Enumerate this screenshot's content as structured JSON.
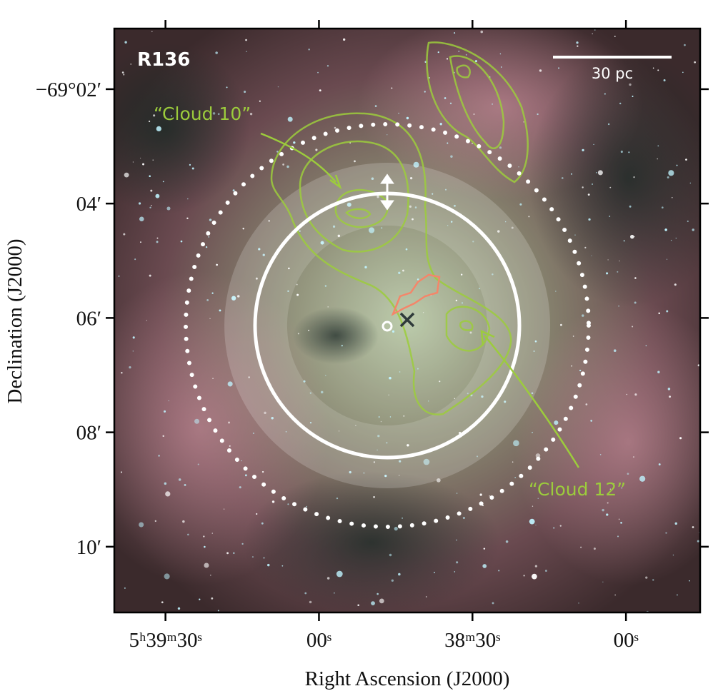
{
  "chart_data": {
    "type": "image",
    "xlabel": "Right Ascension (J2000)",
    "ylabel": "Declination (J2000)",
    "xlim": [
      100,
      -14.5
    ],
    "ylim": [
      11.15,
      0.94
    ],
    "xticks": [
      {
        "value": 90,
        "label": "5ʰ39ᵐ30ˢ"
      },
      {
        "value": 60,
        "label": "00ˢ"
      },
      {
        "value": 30,
        "label": "38ᵐ30ˢ"
      },
      {
        "value": 0,
        "label": "00ˢ"
      }
    ],
    "yticks": [
      {
        "value": 2,
        "label": "−69°02′"
      },
      {
        "value": 4,
        "label": "04′"
      },
      {
        "value": 6,
        "label": "06′"
      },
      {
        "value": 8,
        "label": "08′"
      },
      {
        "value": 10,
        "label": "10′"
      }
    ],
    "annotations": [
      "R136",
      "30 pc",
      "“Cloud 10”",
      "“Cloud 12”"
    ]
  }
}
